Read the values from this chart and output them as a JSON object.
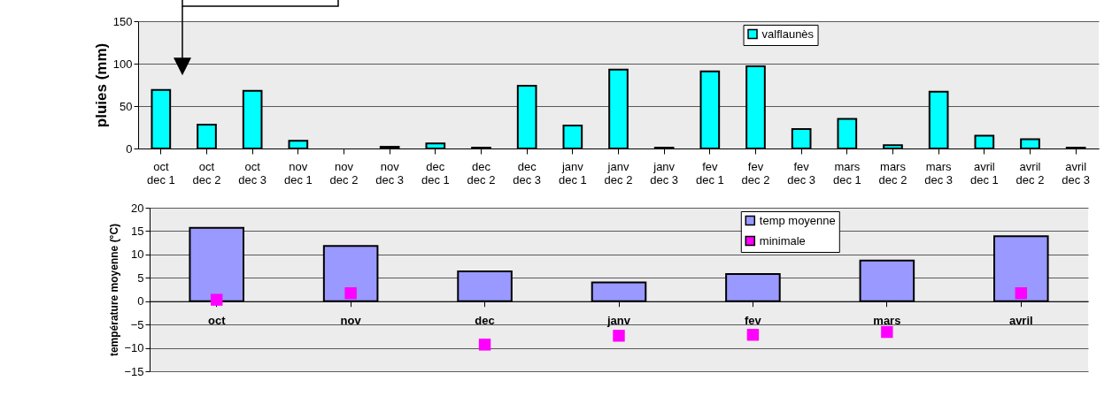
{
  "chart_data": [
    {
      "type": "bar",
      "ylabel": "pluies (mm)",
      "categories": [
        "oct dec 1",
        "oct dec 2",
        "oct dec 3",
        "nov dec 1",
        "nov dec 2",
        "nov dec 3",
        "dec dec 1",
        "dec dec 2",
        "dec dec 3",
        "janv dec 1",
        "janv dec 2",
        "janv dec 3",
        "fev dec 1",
        "fev dec 2",
        "fev dec 3",
        "mars dec 1",
        "mars dec 2",
        "mars dec 3",
        "avril dec 1",
        "avril dec 2",
        "avril dec 3"
      ],
      "series": [
        {
          "name": "valflaunès",
          "color": "#00ffff",
          "values": [
            69,
            28,
            68,
            9,
            0,
            2,
            6,
            1,
            74,
            27,
            93,
            1,
            91,
            97,
            23,
            35,
            4,
            67,
            15,
            11,
            1
          ]
        }
      ],
      "ylim": [
        0,
        150
      ],
      "yticks": [
        0,
        50,
        100,
        150
      ],
      "grid": "y",
      "legend": "top"
    },
    {
      "type": "bar",
      "ylabel": "température moyenne (°C)",
      "categories": [
        "oct",
        "nov",
        "dec",
        "janv",
        "fev",
        "mars",
        "avril"
      ],
      "series": [
        {
          "name": "temp moyenne",
          "color": "#9999ff",
          "values": [
            15.7,
            11.8,
            6.4,
            4,
            5.8,
            8.7,
            13.9
          ]
        },
        {
          "name": "minimale",
          "type": "scatter",
          "color": "#ff00ff",
          "x": [
            "oct",
            "nov",
            "dec",
            "janv",
            "fev",
            "mars",
            "avril"
          ],
          "values": [
            0.3,
            1.7,
            -9.3,
            -7.4,
            -7.2,
            -6.6,
            1.7
          ]
        }
      ],
      "ylim": [
        -15,
        20
      ],
      "yticks": [
        -15,
        -10,
        -5,
        0,
        5,
        10,
        15,
        20
      ],
      "grid": "y",
      "legend": "top",
      "marker": "square"
    }
  ]
}
